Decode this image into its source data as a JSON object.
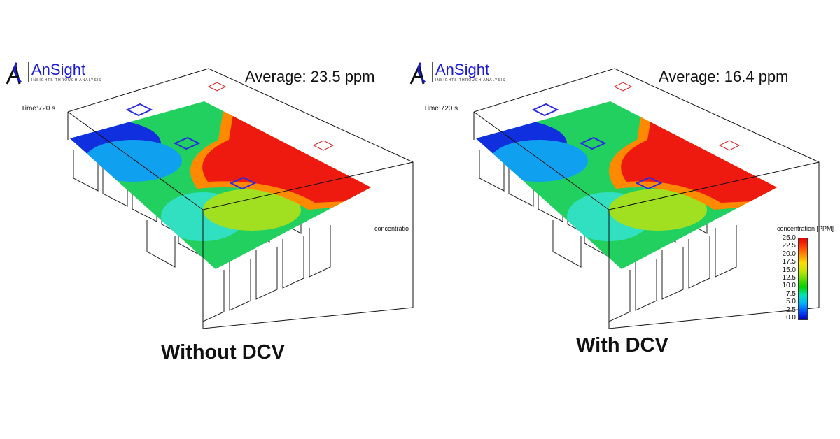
{
  "logo": {
    "name": "AnSight",
    "tagline": "INSIGHTS THROUGH ANALYSIS"
  },
  "panels": [
    {
      "average": "Average: 23.5 ppm",
      "time": "Time:720 s",
      "caption": "Without DCV",
      "colorbar_label": "concentratio",
      "high_fraction": 0.55
    },
    {
      "average": "Average: 16.4 ppm",
      "time": "Time:720 s",
      "caption": "With DCV",
      "colorbar_label": "concentration [PPM]",
      "high_fraction": 0.4
    }
  ],
  "colorbar": {
    "ticks": [
      "25.0",
      "22.5",
      "20.0",
      "17.5",
      "15.0",
      "12.5",
      "10.0",
      "7.5",
      "5.0",
      "2.5",
      "0.0"
    ],
    "colors": [
      "#0000c8",
      "#0050ff",
      "#00b4ff",
      "#00e6b4",
      "#00d200",
      "#64dc00",
      "#c8e600",
      "#ffdc00",
      "#ff8c00",
      "#ff3c00",
      "#e60000"
    ]
  }
}
